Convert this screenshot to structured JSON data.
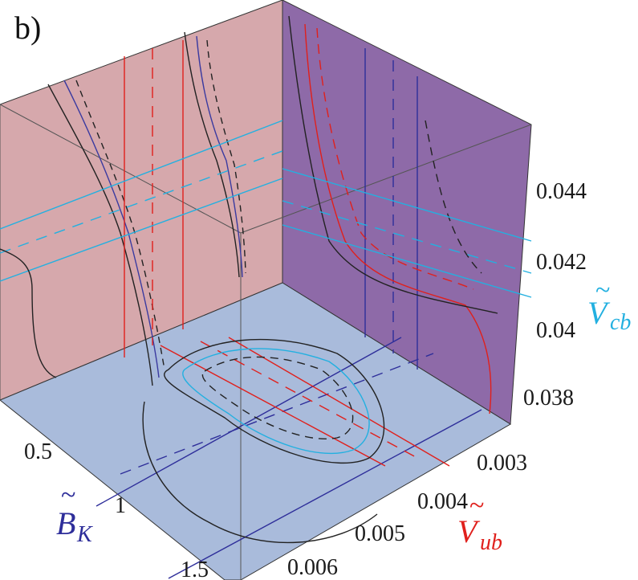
{
  "chart_data": {
    "type": "3d-contour",
    "panel_label": "b)",
    "axes": {
      "bk": {
        "symbol": "B",
        "subscript": "K",
        "ticks": [
          "0.5",
          "1",
          "1.5"
        ],
        "color": "#2e2e9a"
      },
      "vub": {
        "symbol": "V",
        "subscript": "ub",
        "ticks": [
          "0.003",
          "0.004",
          "0.005",
          "0.006"
        ],
        "color": "#e0201c"
      },
      "vcb": {
        "symbol": "V",
        "subscript": "cb",
        "ticks": [
          "0.038",
          "0.04",
          "0.042",
          "0.044"
        ],
        "color": "#23b0e0"
      }
    },
    "panels": {
      "left_wall_color": "#d6a8ac",
      "right_wall_color": "#8e6aa8",
      "floor_color": "#a9bbdb"
    }
  }
}
